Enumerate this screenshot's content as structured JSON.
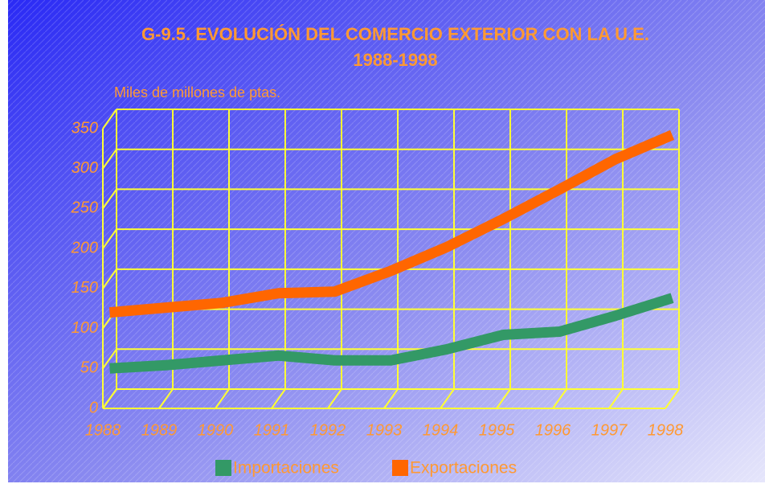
{
  "chart_data": {
    "type": "line",
    "title": "G-9.5. EVOLUCIÓN  DEL COMERCIO EXTERIOR CON LA U.E.",
    "subtitle": "1988-1998",
    "y_label": "Miles de millones de ptas.",
    "categories": [
      "1988",
      "1989",
      "1990",
      "1991",
      "1992",
      "1993",
      "1994",
      "1995",
      "1996",
      "1997",
      "1998"
    ],
    "series": [
      {
        "name": "Importaciones",
        "color": "#339966",
        "values": [
          38,
          42,
          48,
          54,
          48,
          48,
          62,
          80,
          84,
          104,
          126
        ]
      },
      {
        "name": "Exportaciones",
        "color": "#ff6600",
        "values": [
          108,
          114,
          120,
          132,
          134,
          160,
          190,
          225,
          262,
          300,
          330
        ]
      }
    ],
    "ylim": [
      0,
      350
    ],
    "yticks": [
      0,
      50,
      100,
      150,
      200,
      250,
      300,
      350
    ],
    "grid": true
  }
}
